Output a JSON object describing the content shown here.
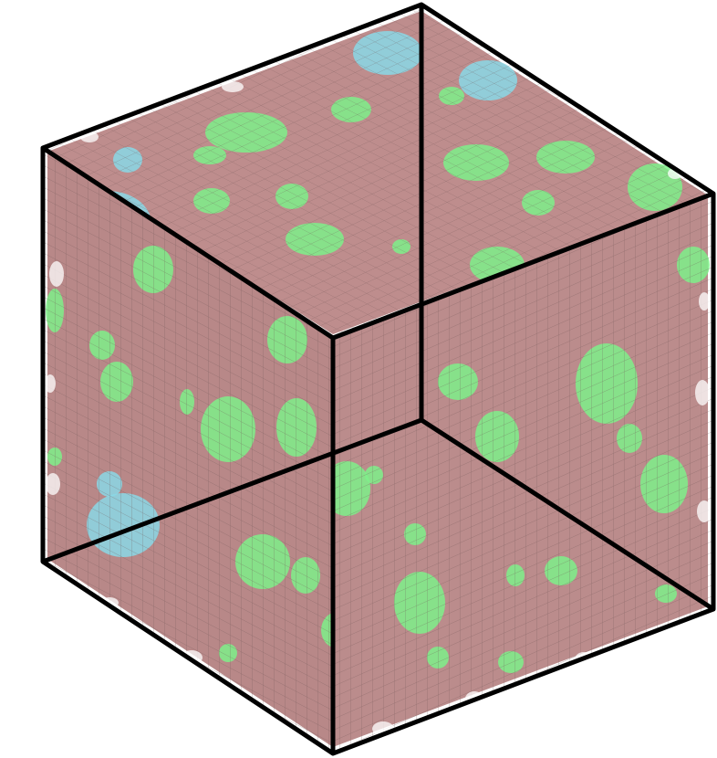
{
  "scene": {
    "subject": "voxel-cube",
    "colors": {
      "matrix": "#b98383",
      "matrix_dark": "#9c6a6a",
      "grid_line": "#6f5454",
      "phase_green": "#7ef089",
      "phase_blue": "#8ad8e6",
      "edge": "#000000",
      "background": "#ffffff"
    }
  }
}
